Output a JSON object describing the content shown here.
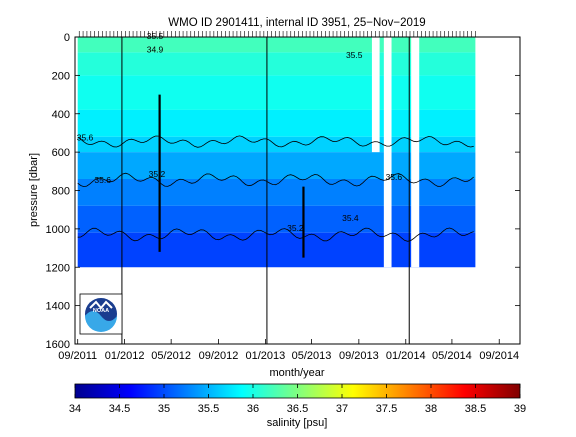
{
  "chart_data": {
    "type": "heatmap",
    "title": "WMO ID 2901411, internal ID 3951, 25−Nov−2019",
    "xlabel": "month/year",
    "ylabel": "pressure [dbar]",
    "x_tick_labels": [
      "09/2011",
      "01/2012",
      "05/2012",
      "09/2012",
      "01/2013",
      "05/2013",
      "09/2013",
      "01/2014",
      "05/2014",
      "09/2014"
    ],
    "x_tick_dates": [
      "2011-09",
      "2012-01",
      "2012-05",
      "2012-09",
      "2013-01",
      "2013-05",
      "2013-09",
      "2014-01",
      "2014-05",
      "2014-09"
    ],
    "xlim": [
      "2011-08-25",
      "2014-10-25"
    ],
    "y_ticks": [
      0,
      200,
      400,
      600,
      800,
      1000,
      1200,
      1400,
      1600
    ],
    "ylim": [
      1600,
      0
    ],
    "y_reversed": true,
    "colorbar": {
      "label": "salinity [psu]",
      "ticks": [
        34,
        34.5,
        35,
        35.5,
        36,
        36.5,
        37,
        37.5,
        38,
        38.5,
        39
      ],
      "range": [
        34,
        39
      ],
      "colormap": "jet"
    },
    "salinity_bands": [
      {
        "top": 0,
        "bottom": 80,
        "salinity": 36.2
      },
      {
        "top": 80,
        "bottom": 200,
        "salinity": 36.05
      },
      {
        "top": 200,
        "bottom": 380,
        "salinity": 35.95
      },
      {
        "top": 380,
        "bottom": 520,
        "salinity": 35.8
      },
      {
        "top": 520,
        "bottom": 600,
        "salinity": 35.65
      },
      {
        "top": 600,
        "bottom": 740,
        "salinity": 35.45
      },
      {
        "top": 740,
        "bottom": 880,
        "salinity": 35.25
      },
      {
        "top": 880,
        "bottom": 1020,
        "salinity": 35.1
      },
      {
        "top": 1020,
        "bottom": 1200,
        "salinity": 34.95
      }
    ],
    "data_gaps": [
      {
        "start": "2013-10-05",
        "end": "2013-10-25",
        "bottom": 600
      },
      {
        "start": "2013-11-05",
        "end": "2013-11-25",
        "bottom": 1200
      },
      {
        "start": "2014-01-15",
        "end": "2014-02-05",
        "bottom": 1200
      }
    ],
    "record_end": "2014-07-01",
    "isohalines": [
      {
        "level": "35.6",
        "base": 545,
        "amp": 30,
        "label_date": "2011-09-20"
      },
      {
        "level": "35.6",
        "base": 745,
        "amp": 35,
        "label_date": "2011-11-01"
      },
      {
        "level": "35.4",
        "base": 1030,
        "amp": 35,
        "label_date": "2013-08-10"
      }
    ],
    "contour_labels": [
      {
        "text": "35.6",
        "date": "2011-09-20",
        "p": 540
      },
      {
        "text": "35.6",
        "date": "2011-11-05",
        "p": 760
      },
      {
        "text": "35.2",
        "date": "2012-03-25",
        "p": 730
      },
      {
        "text": "35.2",
        "date": "2013-03-20",
        "p": 1010
      },
      {
        "text": "35.4",
        "date": "2013-08-10",
        "p": 960
      },
      {
        "text": "35.6",
        "date": "2013-12-01",
        "p": 745
      },
      {
        "text": "34.9",
        "date": "2012-03-20",
        "p": 80
      },
      {
        "text": "35.5",
        "date": "2013-08-20",
        "p": 110
      },
      {
        "text": "35.5",
        "date": "2012-03-20",
        "p": 10
      }
    ],
    "vertical_markers": [
      "2011-12-25",
      "2013-01-05",
      "2014-01-10"
    ],
    "profile_streaks": [
      {
        "date": "2012-04-01",
        "from": 300,
        "to": 1120
      },
      {
        "date": "2013-04-10",
        "from": 780,
        "to": 1150
      }
    ],
    "logo": {
      "name": "noaa-logo",
      "text": "NOAA"
    }
  }
}
